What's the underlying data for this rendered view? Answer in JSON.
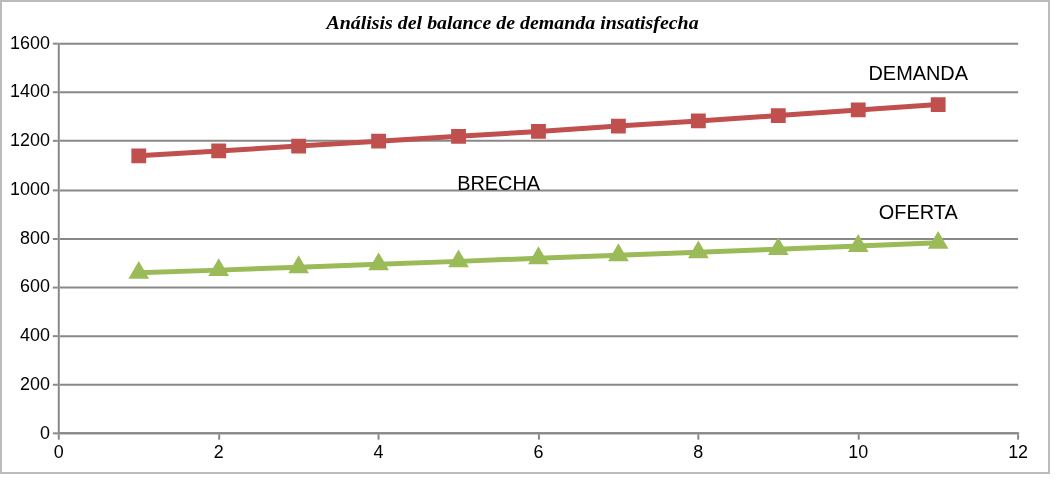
{
  "chart_data": {
    "type": "line",
    "title": "Análisis del balance de demanda insatisfecha",
    "x": [
      1,
      2,
      3,
      4,
      5,
      6,
      7,
      8,
      9,
      10,
      11
    ],
    "series": [
      {
        "name": "DEMANDA",
        "color": "#c0504d",
        "marker": "square",
        "values": [
          1140,
          1160,
          1180,
          1200,
          1220,
          1240,
          1262,
          1283,
          1305,
          1328,
          1350
        ]
      },
      {
        "name": "OFERTA",
        "color": "#9bbb59",
        "marker": "triangle",
        "values": [
          660,
          671,
          683,
          695,
          707,
          720,
          732,
          744,
          757,
          770,
          783
        ]
      }
    ],
    "xlim": [
      0,
      12
    ],
    "xticks": [
      0,
      2,
      4,
      6,
      8,
      10,
      12
    ],
    "ylim": [
      0,
      1600
    ],
    "yticks": [
      0,
      200,
      400,
      600,
      800,
      1000,
      1200,
      1400,
      1600
    ],
    "grid": "y",
    "legend": false,
    "annotations": [
      "BRECHA"
    ]
  }
}
